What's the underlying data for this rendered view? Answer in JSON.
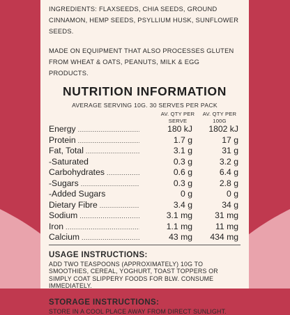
{
  "ingredients_text": "INGREDIENTS: FLAXSEEDS, CHIA SEEDS, GROUND CINNAMON, HEMP SEEDS, PSYLLIUM HUSK, SUNFLOWER SEEDS.",
  "equipment_text": "MADE ON EQUIPMENT THAT ALSO PROCESSES GLUTEN FROM WHEAT & OATS, PEANUTS, MILK & EGG PRODUCTS.",
  "nutrition": {
    "title": "NUTRITION INFORMATION",
    "serving": "AVERAGE SERVING 10G. 30 SERVES PER PACK",
    "col1_header": "AV. QTY PER SERVE",
    "col2_header": "AV. QTY PER 100G",
    "rows": [
      {
        "label": "Energy",
        "per_serve": "180 kJ",
        "per_100g": "1802 kJ"
      },
      {
        "label": "Protein",
        "per_serve": "1.7 g",
        "per_100g": "17 g"
      },
      {
        "label": "Fat, Total",
        "per_serve": "3.1 g",
        "per_100g": "31 g"
      },
      {
        "label": "-Saturated",
        "per_serve": "0.3 g",
        "per_100g": "3.2 g"
      },
      {
        "label": "Carbohydrates",
        "per_serve": "0.6 g",
        "per_100g": "6.4 g"
      },
      {
        "label": "-Sugars",
        "per_serve": "0.3 g",
        "per_100g": "2.8 g"
      },
      {
        "label": "-Added Sugars",
        "per_serve": "0 g",
        "per_100g": "0 g"
      },
      {
        "label": "Dietary Fibre",
        "per_serve": "3.4 g",
        "per_100g": "34 g"
      },
      {
        "label": "Sodium",
        "per_serve": "3.1 mg",
        "per_100g": "31 mg"
      },
      {
        "label": "Iron",
        "per_serve": "1.1 mg",
        "per_100g": "11 mg"
      },
      {
        "label": "Calcium",
        "per_serve": "43 mg",
        "per_100g": "434 mg"
      }
    ]
  },
  "usage": {
    "title": "USAGE INSTRUCTIONS:",
    "body": "ADD TWO TEASPOONS (APPROXIMATELY) 10G TO SMOOTHIES, CEREAL, YOGHURT, TOAST TOPPERS OR SIMPLY COAT SLIPPERY FOODS FOR BLW. CONSUME IMMEDIATELY."
  },
  "storage": {
    "title": "STORAGE INSTRUCTIONS:",
    "body": "STORE IN A COOL PLACE AWAY FROM DIRECT SUNLIGHT."
  },
  "colors": {
    "background": "#c0394f",
    "curve": "#e9a3ac",
    "panel": "#fbf2ea"
  }
}
